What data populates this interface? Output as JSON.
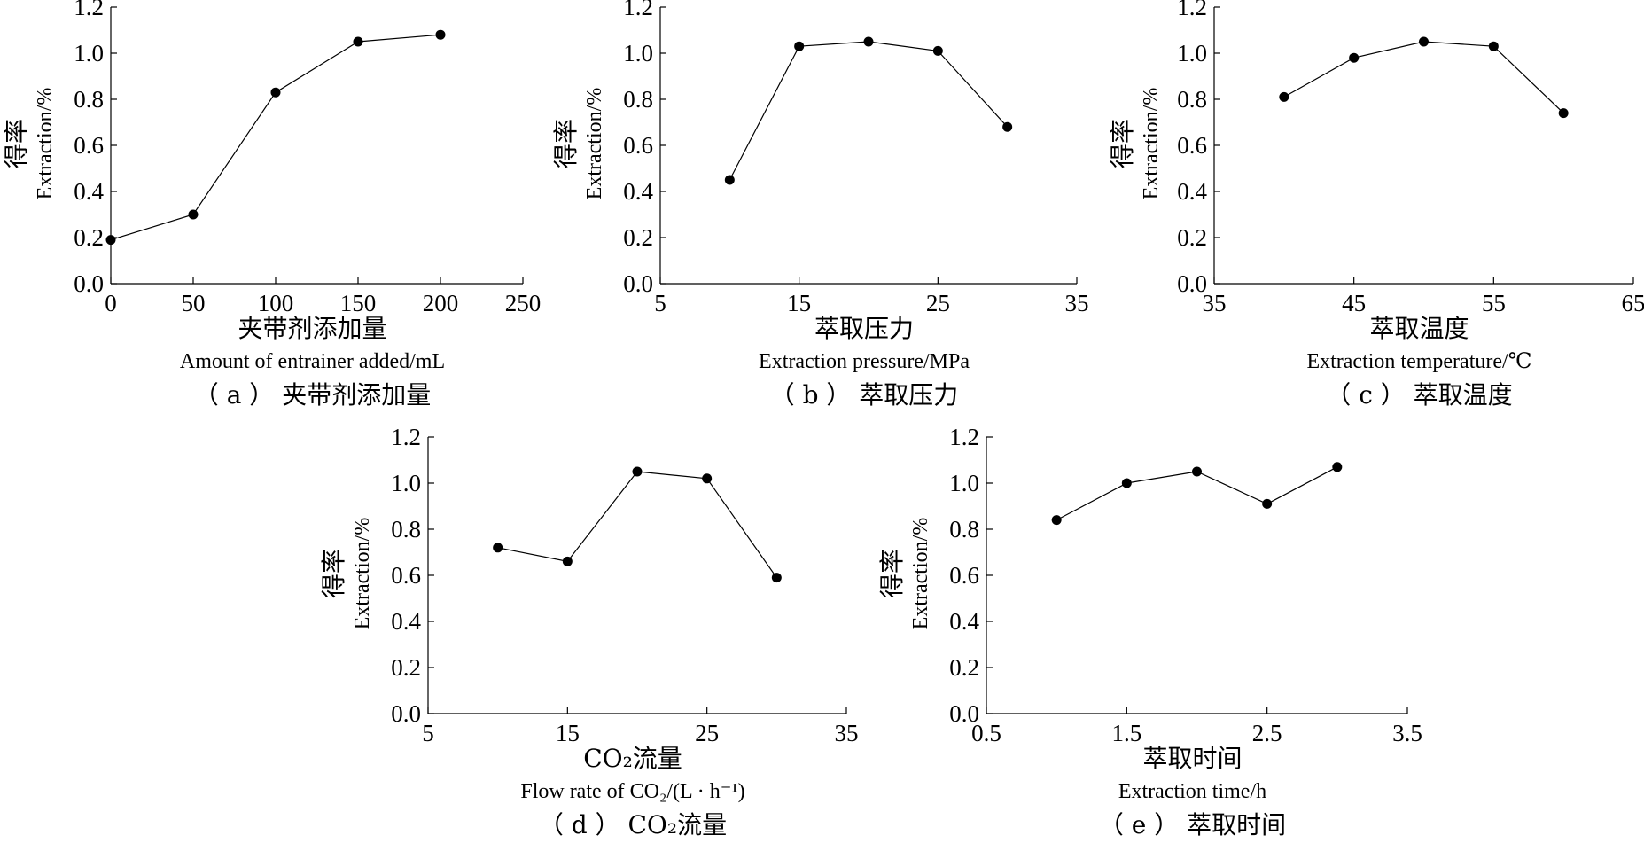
{
  "chart_data": [
    {
      "type": "line",
      "caption": "（ a ） 夹带剂添加量",
      "xlabel_cn": "夹带剂添加量",
      "xlabel_en": "Amount of entrainer added/mL",
      "ylabel_cn": "得率",
      "ylabel_en": "Extraction/%",
      "xlim": [
        0,
        250
      ],
      "xticks": [
        0,
        50,
        100,
        150,
        200,
        250
      ],
      "ylim": [
        0,
        1.2
      ],
      "yticks": [
        0.0,
        0.2,
        0.4,
        0.6,
        0.8,
        1.0,
        1.2
      ],
      "x": [
        0,
        50,
        100,
        150,
        200
      ],
      "y": [
        0.19,
        0.3,
        0.83,
        1.05,
        1.08
      ]
    },
    {
      "type": "line",
      "caption": "（ b ） 萃取压力",
      "xlabel_cn": "萃取压力",
      "xlabel_en": "Extraction pressure/MPa",
      "ylabel_cn": "得率",
      "ylabel_en": "Extraction/%",
      "xlim": [
        5,
        35
      ],
      "xticks": [
        5,
        15,
        25,
        35
      ],
      "ylim": [
        0,
        1.2
      ],
      "yticks": [
        0.0,
        0.2,
        0.4,
        0.6,
        0.8,
        1.0,
        1.2
      ],
      "x": [
        10,
        15,
        20,
        25,
        30
      ],
      "y": [
        0.45,
        1.03,
        1.05,
        1.01,
        0.68
      ]
    },
    {
      "type": "line",
      "caption": "（ c ） 萃取温度",
      "xlabel_cn": "萃取温度",
      "xlabel_en": "Extraction temperature/℃",
      "ylabel_cn": "得率",
      "ylabel_en": "Extraction/%",
      "xlim": [
        35,
        65
      ],
      "xticks": [
        35,
        45,
        55,
        65
      ],
      "ylim": [
        0,
        1.2
      ],
      "yticks": [
        0.0,
        0.2,
        0.4,
        0.6,
        0.8,
        1.0,
        1.2
      ],
      "x": [
        40,
        45,
        50,
        55,
        60
      ],
      "y": [
        0.81,
        0.98,
        1.05,
        1.03,
        0.74
      ]
    },
    {
      "type": "line",
      "caption": "（ d ） CO₂流量",
      "xlabel_cn": "CO₂流量",
      "xlabel_en": "Flow rate of CO₂/(L · h⁻¹)",
      "ylabel_cn": "得率",
      "ylabel_en": "Extraction/%",
      "xlim": [
        5,
        35
      ],
      "xticks": [
        5,
        15,
        25,
        35
      ],
      "ylim": [
        0,
        1.2
      ],
      "yticks": [
        0.0,
        0.2,
        0.4,
        0.6,
        0.8,
        1.0,
        1.2
      ],
      "x": [
        10,
        15,
        20,
        25,
        30
      ],
      "y": [
        0.72,
        0.66,
        1.05,
        1.02,
        0.59
      ]
    },
    {
      "type": "line",
      "caption": "（ e ） 萃取时间",
      "xlabel_cn": "萃取时间",
      "xlabel_en": "Extraction time/h",
      "ylabel_cn": "得率",
      "ylabel_en": "Extraction/%",
      "xlim": [
        0.5,
        3.5
      ],
      "xticks": [
        0.5,
        1.5,
        2.5,
        3.5
      ],
      "ylim": [
        0,
        1.2
      ],
      "yticks": [
        0.0,
        0.2,
        0.4,
        0.6,
        0.8,
        1.0,
        1.2
      ],
      "x": [
        1.0,
        1.5,
        2.0,
        2.5,
        3.0
      ],
      "y": [
        0.84,
        1.0,
        1.05,
        0.91,
        1.07
      ]
    }
  ]
}
